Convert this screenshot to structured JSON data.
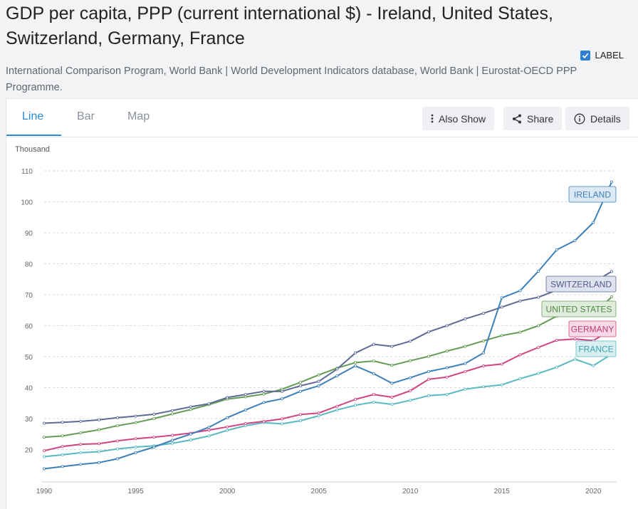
{
  "header": {
    "title": "GDP per capita, PPP (current international $) - Ireland, United States, Switzerland, Germany, France",
    "source": "International Comparison Program, World Bank | World Development Indicators database, World Bank | Eurostat-OECD PPP Programme."
  },
  "tabs": [
    {
      "label": "Line",
      "active": true
    },
    {
      "label": "Bar",
      "active": false
    },
    {
      "label": "Map",
      "active": false
    }
  ],
  "toolbar": {
    "also_show_label": "Also Show",
    "share_label": "Share",
    "details_label": "Details"
  },
  "label_toggle": {
    "label": "LABEL",
    "checked": true
  },
  "chart_data": {
    "type": "line",
    "title": "GDP per capita, PPP (current international $)",
    "ylabel": "Thousand",
    "xlabel": "",
    "xlim": [
      1990,
      2021
    ],
    "ylim": [
      10,
      110
    ],
    "yticks": [
      20,
      30,
      40,
      50,
      60,
      70,
      80,
      90,
      100,
      110
    ],
    "xticks": [
      1990,
      1995,
      2000,
      2005,
      2010,
      2015,
      2020
    ],
    "grid": true,
    "x": [
      1990,
      1991,
      1992,
      1993,
      1994,
      1995,
      1996,
      1997,
      1998,
      1999,
      2000,
      2001,
      2002,
      2003,
      2004,
      2005,
      2006,
      2007,
      2008,
      2009,
      2010,
      2011,
      2012,
      2013,
      2014,
      2015,
      2016,
      2017,
      2018,
      2019,
      2020,
      2021
    ],
    "series": [
      {
        "name": "Ireland",
        "label": "IRELAND",
        "color": "#3d7fb8",
        "label_bg": "#dce9f5",
        "label_text": "#3d7fb8",
        "values": [
          13.8,
          14.5,
          15.2,
          15.8,
          17.0,
          19.0,
          20.8,
          23.0,
          25.0,
          27.2,
          30.3,
          32.8,
          35.2,
          36.4,
          38.8,
          40.6,
          43.8,
          47.0,
          44.5,
          41.4,
          43.2,
          45.2,
          46.4,
          47.8,
          51.2,
          69.0,
          71.3,
          77.6,
          84.5,
          87.5,
          93.3,
          106.4
        ]
      },
      {
        "name": "Switzerland",
        "label": "SWITZERLAND",
        "color": "#5e6a96",
        "label_bg": "#dfe2ef",
        "label_text": "#4e5a88",
        "values": [
          28.5,
          28.8,
          29.1,
          29.6,
          30.3,
          30.8,
          31.4,
          32.6,
          33.8,
          34.8,
          36.8,
          37.8,
          38.8,
          38.8,
          40.6,
          42.0,
          46.0,
          51.2,
          54.0,
          53.3,
          55.0,
          58.0,
          60.0,
          62.2,
          64.0,
          66.0,
          68.0,
          69.2,
          71.5,
          72.5,
          74.0,
          77.5
        ]
      },
      {
        "name": "United States",
        "label": "UNITED STATES",
        "color": "#629c55",
        "label_bg": "#dfecdb",
        "label_text": "#4e8a42",
        "values": [
          24.0,
          24.4,
          25.4,
          26.4,
          27.7,
          28.7,
          30.0,
          31.5,
          32.9,
          34.5,
          36.3,
          37.0,
          37.9,
          39.5,
          41.7,
          44.1,
          46.3,
          48.1,
          48.6,
          47.2,
          48.7,
          50.1,
          51.8,
          53.3,
          55.1,
          56.8,
          57.9,
          60.0,
          63.1,
          65.1,
          63.5,
          69.3
        ]
      },
      {
        "name": "Germany",
        "label": "GERMANY",
        "color": "#d1437e",
        "label_bg": "#f6dae6",
        "label_text": "#c23a74",
        "values": [
          19.6,
          21.0,
          21.7,
          21.9,
          22.8,
          23.5,
          24.0,
          24.6,
          25.3,
          26.3,
          27.3,
          28.4,
          29.1,
          29.9,
          31.3,
          31.8,
          34.0,
          36.2,
          37.8,
          36.9,
          39.0,
          42.7,
          43.4,
          45.2,
          47.0,
          47.6,
          50.6,
          53.0,
          55.3,
          55.7,
          55.2,
          58.7
        ]
      },
      {
        "name": "France",
        "label": "FRANCE",
        "color": "#59b8c4",
        "label_bg": "#d8eef1",
        "label_text": "#3aa3b0",
        "values": [
          17.7,
          18.3,
          19.0,
          19.3,
          20.2,
          20.8,
          21.2,
          22.0,
          23.1,
          24.4,
          26.2,
          27.7,
          28.7,
          28.3,
          29.3,
          30.9,
          32.8,
          34.3,
          35.3,
          34.6,
          35.9,
          37.4,
          37.8,
          39.5,
          40.3,
          40.9,
          42.9,
          44.6,
          46.6,
          49.2,
          47.1,
          50.8
        ]
      }
    ]
  }
}
